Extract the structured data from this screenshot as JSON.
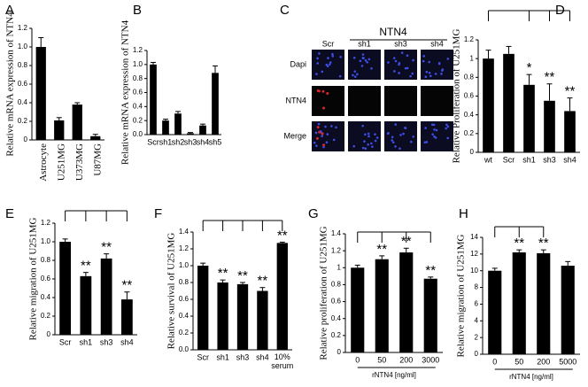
{
  "chart_data": [
    {
      "type": "bar",
      "panel_label": "A",
      "ylabel": "Relative mRNA expression of NTN4",
      "categories": [
        "Astrocyte",
        "U251MG",
        "U373MG",
        "U87MG"
      ],
      "values": [
        1.0,
        0.21,
        0.38,
        0.04
      ],
      "errors": [
        0.1,
        0.03,
        0.02,
        0.02
      ],
      "color": "#000000",
      "ylim": [
        0,
        1.2
      ],
      "yticks": [
        0,
        0.2,
        0.4,
        0.6,
        0.8,
        {
          "value": 1,
          "label": "1.0"
        },
        1.2
      ],
      "rotate_categories": true
    },
    {
      "type": "bar",
      "panel_label": "B",
      "ylabel": "Relative mRNA expression of NTN4",
      "categories": [
        "Scr",
        "sh1",
        "sh2",
        "sh3",
        "sh4",
        "sh5"
      ],
      "values": [
        1.0,
        0.2,
        0.3,
        0.02,
        0.13,
        0.88
      ],
      "errors": [
        0.03,
        0.02,
        0.03,
        0.01,
        0.02,
        0.1
      ],
      "color": "#000000",
      "ylim": [
        0,
        1.2
      ],
      "yticks": [
        {
          "value": 0,
          "label": "0.0"
        },
        0.2,
        0.4,
        0.6,
        0.8,
        {
          "value": 1,
          "label": "1.0"
        },
        1.2
      ]
    },
    {
      "type": "bar",
      "panel_label": "D",
      "ylabel": "Relative Proliferation of U251MG",
      "categories": [
        "wt",
        "Scr",
        "sh1",
        "sh3",
        "sh4"
      ],
      "values": [
        1.0,
        1.05,
        0.72,
        0.55,
        0.44
      ],
      "errors": [
        0.09,
        0.08,
        0.11,
        0.18,
        0.14
      ],
      "significance": [
        null,
        null,
        "*",
        "**",
        "**"
      ],
      "comparison_bracket": true,
      "color": "#000000",
      "ylim": [
        0,
        1.2
      ],
      "yticks": [
        0,
        0.2,
        0.4,
        0.6,
        0.8,
        1,
        1.2
      ]
    },
    {
      "type": "bar",
      "panel_label": "E",
      "ylabel": "Relative migration of U251MG",
      "categories": [
        "Scr",
        "sh1",
        "sh3",
        "sh4"
      ],
      "values": [
        1.0,
        0.63,
        0.82,
        0.38
      ],
      "errors": [
        0.03,
        0.04,
        0.05,
        0.08
      ],
      "significance": [
        null,
        "**",
        "**",
        "**"
      ],
      "comparison_bracket": true,
      "color": "#000000",
      "ylim": [
        0,
        1.2
      ],
      "yticks": [
        0,
        0.2,
        0.4,
        0.6,
        0.8,
        {
          "value": 1,
          "label": "1.0"
        },
        1.2
      ]
    },
    {
      "type": "bar",
      "panel_label": "F",
      "ylabel": "Relative survival of U251MG",
      "categories": [
        "Scr",
        "sh1",
        "sh3",
        "sh4",
        "10% serum"
      ],
      "values": [
        1.0,
        0.8,
        0.78,
        0.7,
        1.27
      ],
      "errors": [
        0.03,
        0.03,
        0.02,
        0.04,
        0.01
      ],
      "significance": [
        null,
        "**",
        "**",
        "**",
        "**"
      ],
      "comparison_bracket": true,
      "color": "#000000",
      "ylim": [
        0,
        1.4
      ],
      "yticks": [
        {
          "value": 0,
          "label": "0.0"
        },
        0.2,
        0.4,
        0.6,
        0.8,
        {
          "value": 1,
          "label": "1.0"
        },
        1.2,
        1.4
      ]
    },
    {
      "type": "bar",
      "panel_label": "G",
      "ylabel": "Relative proliferation of U251MG",
      "xlabel": "rNTN4 [ng/ml]",
      "categories": [
        "0",
        "50",
        "200",
        "3000"
      ],
      "values": [
        1.0,
        1.1,
        1.18,
        0.87
      ],
      "errors": [
        0.03,
        0.04,
        0.05,
        0.02
      ],
      "significance": [
        null,
        "**",
        "**",
        "**"
      ],
      "comparison_bracket": true,
      "color": "#000000",
      "ylim": [
        0,
        1.4
      ],
      "yticks": [
        0,
        0.2,
        0.4,
        0.6,
        0.8,
        1,
        1.2,
        1.4
      ]
    },
    {
      "type": "bar",
      "panel_label": "H",
      "ylabel": "Relative migration of U251MG",
      "xlabel": "rNTN4 [ng/ml]",
      "categories": [
        "0",
        "50",
        "200",
        "5000"
      ],
      "values": [
        10,
        12.2,
        12.1,
        10.6
      ],
      "errors": [
        0.3,
        0.3,
        0.4,
        0.5
      ],
      "significance": [
        null,
        "**",
        "**",
        null
      ],
      "comparison_bracket": true,
      "color": "#000000",
      "ylim": [
        0,
        14
      ],
      "yticks": [
        0,
        2,
        4,
        6,
        8,
        10,
        12,
        14
      ]
    }
  ],
  "image_grid": {
    "panel_label": "C",
    "title": "NTN4",
    "columns": [
      "Scr",
      "sh1",
      "sh3",
      "sh4"
    ],
    "rows": [
      "Dapi",
      "NTN4",
      "Merge"
    ]
  }
}
